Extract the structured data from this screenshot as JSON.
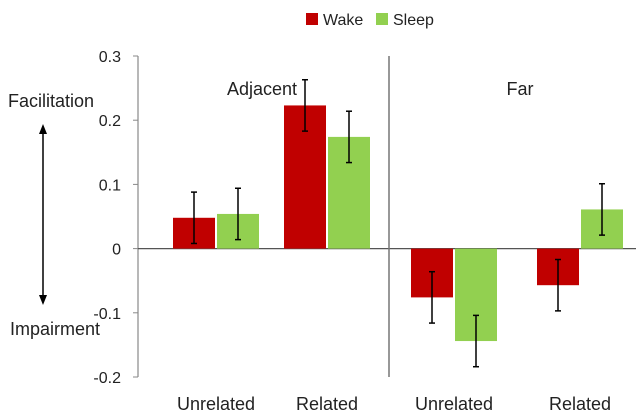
{
  "chart_data": {
    "type": "bar",
    "title": "",
    "xlabel": "",
    "ylabel": "",
    "ylim": [
      -0.2,
      0.3
    ],
    "yticks": [
      -0.2,
      -0.1,
      0,
      0.1,
      0.2,
      0.3
    ],
    "ytick_labels": [
      "-0.2",
      "-0.1",
      "0",
      "0.1",
      "0.2",
      "0.3"
    ],
    "grid": false,
    "legend_position": "top-center",
    "annotations": {
      "top": "Facilitation",
      "bottom": "Impairment"
    },
    "categories": [
      "Unrelated",
      "Related",
      "Unrelated",
      "Related"
    ],
    "groups": [
      {
        "label": "Adjacent",
        "categories": [
          0,
          1
        ]
      },
      {
        "label": "Far",
        "categories": [
          2,
          3
        ]
      }
    ],
    "series": [
      {
        "name": "Wake",
        "color": "#c00000",
        "values": [
          0.048,
          0.223,
          -0.076,
          -0.057
        ],
        "errors": [
          0.04,
          0.04,
          0.04,
          0.04
        ]
      },
      {
        "name": "Sleep",
        "color": "#92d050",
        "values": [
          0.054,
          0.174,
          -0.144,
          0.061
        ],
        "errors": [
          0.04,
          0.04,
          0.04,
          0.04
        ]
      }
    ]
  }
}
